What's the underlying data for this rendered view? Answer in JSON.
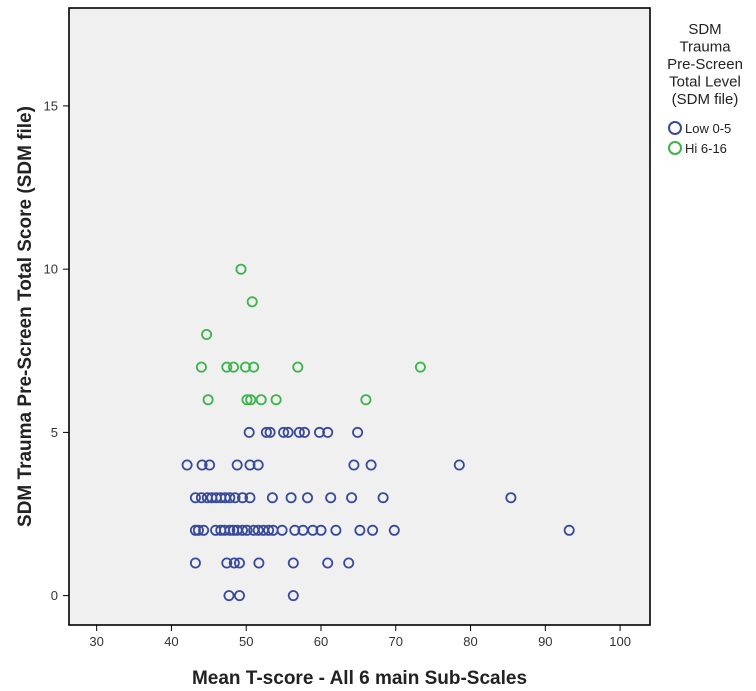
{
  "chart_data": {
    "type": "scatter",
    "xlabel": "Mean T-score - All 6 main Sub-Scales",
    "ylabel": "SDM Trauma Pre-Screen Total Score (SDM file)",
    "xlim": [
      26.3,
      104
    ],
    "ylim": [
      -0.9,
      18.0
    ],
    "xticks": [
      30,
      40,
      50,
      60,
      70,
      80,
      90,
      100
    ],
    "yticks": [
      0,
      5,
      10,
      15
    ],
    "grid": false,
    "legend": {
      "title_lines": [
        "SDM",
        "Trauma",
        "Pre-Screen",
        "Total Level",
        "(SDM file)"
      ],
      "placement": "outside-right"
    },
    "series": [
      {
        "name": "Low 0-5",
        "color": "#3a4a9a",
        "points": [
          [
            47.7,
            0
          ],
          [
            49.1,
            0
          ],
          [
            56.3,
            0
          ],
          [
            43.2,
            1
          ],
          [
            47.4,
            1
          ],
          [
            48.4,
            1
          ],
          [
            49.1,
            1
          ],
          [
            51.7,
            1
          ],
          [
            56.3,
            1
          ],
          [
            60.9,
            1
          ],
          [
            63.7,
            1
          ],
          [
            43.2,
            2
          ],
          [
            43.6,
            2
          ],
          [
            44.3,
            2
          ],
          [
            45.9,
            2
          ],
          [
            46.6,
            2
          ],
          [
            47.1,
            2
          ],
          [
            47.8,
            2
          ],
          [
            48.3,
            2
          ],
          [
            48.8,
            2
          ],
          [
            49.5,
            2
          ],
          [
            50.1,
            2
          ],
          [
            51.0,
            2
          ],
          [
            51.6,
            2
          ],
          [
            52.3,
            2
          ],
          [
            53.0,
            2
          ],
          [
            53.6,
            2
          ],
          [
            54.8,
            2
          ],
          [
            56.5,
            2
          ],
          [
            57.6,
            2
          ],
          [
            58.9,
            2
          ],
          [
            60.0,
            2
          ],
          [
            62.0,
            2
          ],
          [
            65.2,
            2
          ],
          [
            66.9,
            2
          ],
          [
            69.8,
            2
          ],
          [
            93.2,
            2
          ],
          [
            43.2,
            3
          ],
          [
            44.0,
            3
          ],
          [
            44.8,
            3
          ],
          [
            45.4,
            3
          ],
          [
            46.0,
            3
          ],
          [
            46.6,
            3
          ],
          [
            47.2,
            3
          ],
          [
            47.8,
            3
          ],
          [
            48.5,
            3
          ],
          [
            49.5,
            3
          ],
          [
            50.5,
            3
          ],
          [
            53.5,
            3
          ],
          [
            56.0,
            3
          ],
          [
            58.2,
            3
          ],
          [
            61.3,
            3
          ],
          [
            64.1,
            3
          ],
          [
            68.3,
            3
          ],
          [
            85.4,
            3
          ],
          [
            42.1,
            4
          ],
          [
            44.1,
            4
          ],
          [
            45.1,
            4
          ],
          [
            48.8,
            4
          ],
          [
            50.5,
            4
          ],
          [
            51.6,
            4
          ],
          [
            64.4,
            4
          ],
          [
            66.7,
            4
          ],
          [
            78.5,
            4
          ],
          [
            50.4,
            5
          ],
          [
            52.7,
            5
          ],
          [
            53.2,
            5
          ],
          [
            55.0,
            5
          ],
          [
            55.6,
            5
          ],
          [
            57.1,
            5
          ],
          [
            57.8,
            5
          ],
          [
            59.8,
            5
          ],
          [
            60.9,
            5
          ],
          [
            64.9,
            5
          ]
        ]
      },
      {
        "name": "Hi 6-16",
        "color": "#3cb44b",
        "points": [
          [
            44.9,
            6
          ],
          [
            50.1,
            6
          ],
          [
            50.6,
            6
          ],
          [
            52.0,
            6
          ],
          [
            54.0,
            6
          ],
          [
            66.0,
            6
          ],
          [
            44.0,
            7
          ],
          [
            47.4,
            7
          ],
          [
            48.3,
            7
          ],
          [
            49.9,
            7
          ],
          [
            51.0,
            7
          ],
          [
            56.9,
            7
          ],
          [
            73.3,
            7
          ],
          [
            44.7,
            8
          ],
          [
            50.8,
            9
          ],
          [
            49.3,
            10
          ]
        ]
      }
    ]
  }
}
